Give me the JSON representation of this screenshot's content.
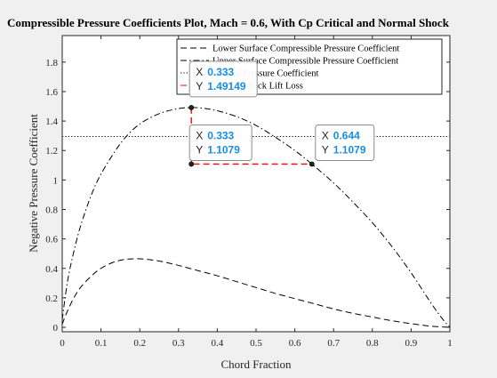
{
  "chart_data": {
    "type": "line",
    "title": "Compressible Pressure Coefficients Plot, Mach = 0.6, With Cp Critical and Normal Shock",
    "xlabel": "Chord Fraction",
    "ylabel": "Negative Pressure Coefficient",
    "xlim": [
      0,
      1
    ],
    "ylim": [
      -0.03,
      1.98
    ],
    "xticks": [
      "0",
      "0.1",
      "0.2",
      "0.3",
      "0.4",
      "0.5",
      "0.6",
      "0.7",
      "0.8",
      "0.9",
      "1"
    ],
    "yticks": [
      "0",
      "0.2",
      "0.4",
      "0.6",
      "0.8",
      "1",
      "1.2",
      "1.4",
      "1.6",
      "1.8"
    ],
    "grid": false,
    "legend_position": "top-right",
    "series": [
      {
        "name": "Lower Surface Compressible Pressure Coefficient",
        "style": "dashed",
        "color": "#000000",
        "x": [
          0,
          0.01,
          0.03,
          0.05,
          0.08,
          0.1,
          0.13,
          0.16,
          0.2,
          0.25,
          0.3,
          0.35,
          0.4,
          0.45,
          0.5,
          0.55,
          0.6,
          0.65,
          0.7,
          0.75,
          0.8,
          0.85,
          0.9,
          0.95,
          1
        ],
        "y": [
          0.02,
          0.09,
          0.2,
          0.28,
          0.36,
          0.4,
          0.44,
          0.46,
          0.465,
          0.45,
          0.42,
          0.385,
          0.35,
          0.31,
          0.27,
          0.23,
          0.195,
          0.16,
          0.125,
          0.095,
          0.07,
          0.045,
          0.025,
          0.008,
          0
        ]
      },
      {
        "name": "Upper Surface Compressible Pressure Coefficient",
        "style": "dashdot",
        "color": "#000000",
        "x": [
          0,
          0.01,
          0.02,
          0.04,
          0.06,
          0.08,
          0.1,
          0.13,
          0.16,
          0.2,
          0.25,
          0.3,
          0.333,
          0.36,
          0.4,
          0.45,
          0.5,
          0.55,
          0.6,
          0.644,
          0.7,
          0.75,
          0.8,
          0.85,
          0.9,
          0.95,
          0.98,
          1
        ],
        "y": [
          0.05,
          0.25,
          0.4,
          0.62,
          0.79,
          0.93,
          1.04,
          1.17,
          1.28,
          1.38,
          1.45,
          1.485,
          1.49149,
          1.488,
          1.47,
          1.43,
          1.37,
          1.29,
          1.2,
          1.1079,
          0.98,
          0.85,
          0.71,
          0.55,
          0.37,
          0.17,
          0.06,
          0
        ]
      },
      {
        "name": "Critical Pressure Coefficient",
        "style": "dotted",
        "color": "#000000",
        "x": [
          0,
          1
        ],
        "y": [
          1.295,
          1.295
        ]
      },
      {
        "name": "Normal Shock Lift Loss",
        "style": "dashed",
        "color": "#ff0000",
        "x": [
          0.333,
          0.333,
          0.644
        ],
        "y": [
          1.49149,
          1.1079,
          1.1079
        ]
      }
    ],
    "datatips": [
      {
        "x_label": "X",
        "y_label": "Y",
        "x_value": "0.333",
        "y_value": "1.49149",
        "x": 0.333,
        "y": 1.49149
      },
      {
        "x_label": "X",
        "y_label": "Y",
        "x_value": "0.333",
        "y_value": "1.1079",
        "x": 0.333,
        "y": 1.1079
      },
      {
        "x_label": "X",
        "y_label": "Y",
        "x_value": "0.644",
        "y_value": "1.1079",
        "x": 0.644,
        "y": 1.1079
      }
    ]
  }
}
